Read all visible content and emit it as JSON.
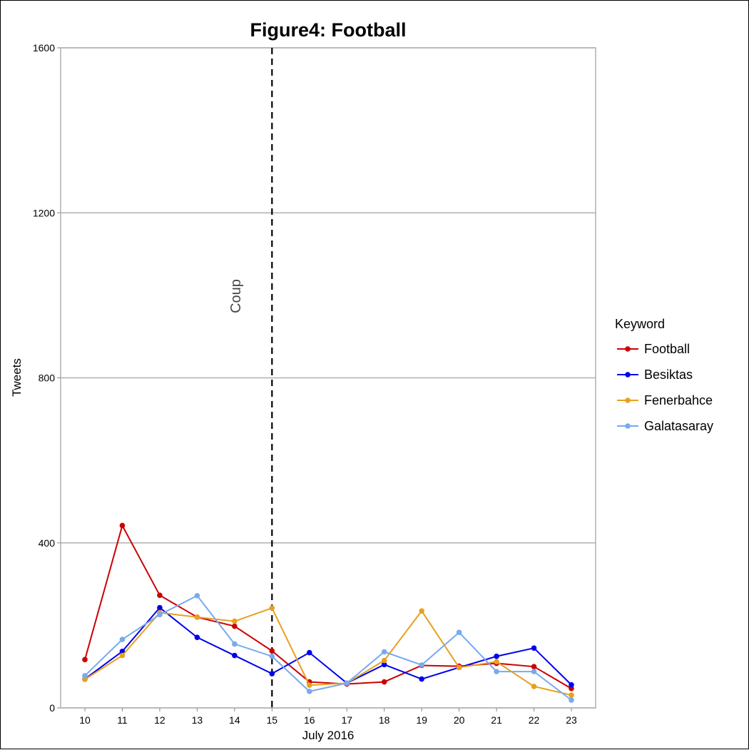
{
  "chart_data": {
    "type": "line",
    "title": "Figure4: Football",
    "xlabel": "July 2016",
    "ylabel": "Tweets",
    "x": [
      10,
      11,
      12,
      13,
      14,
      15,
      16,
      17,
      18,
      19,
      20,
      21,
      22,
      23
    ],
    "ylim": [
      0,
      1600
    ],
    "yticks": [
      0,
      400,
      800,
      1200,
      1600
    ],
    "grid": true,
    "legend": {
      "title": "Keyword",
      "placement": "right"
    },
    "series": [
      {
        "name": "Football",
        "color": "#cc0000",
        "values": [
          117,
          442,
          273,
          220,
          198,
          138,
          63,
          58,
          63,
          103,
          101,
          108,
          100,
          47
        ]
      },
      {
        "name": "Besiktas",
        "color": "#0000ee",
        "values": [
          70,
          137,
          243,
          171,
          127,
          83,
          134,
          60,
          105,
          70,
          98,
          125,
          145,
          56
        ]
      },
      {
        "name": "Fenerbahce",
        "color": "#e8a020",
        "values": [
          69,
          127,
          231,
          220,
          210,
          242,
          55,
          60,
          115,
          235,
          98,
          112,
          52,
          31
        ]
      },
      {
        "name": "Galatasaray",
        "color": "#77aaee",
        "values": [
          78,
          166,
          226,
          272,
          155,
          125,
          40,
          60,
          136,
          104,
          183,
          88,
          88,
          19
        ]
      }
    ],
    "annotations": [
      {
        "type": "vline",
        "x": 15,
        "style": "dashed",
        "label": "Coup"
      }
    ]
  }
}
